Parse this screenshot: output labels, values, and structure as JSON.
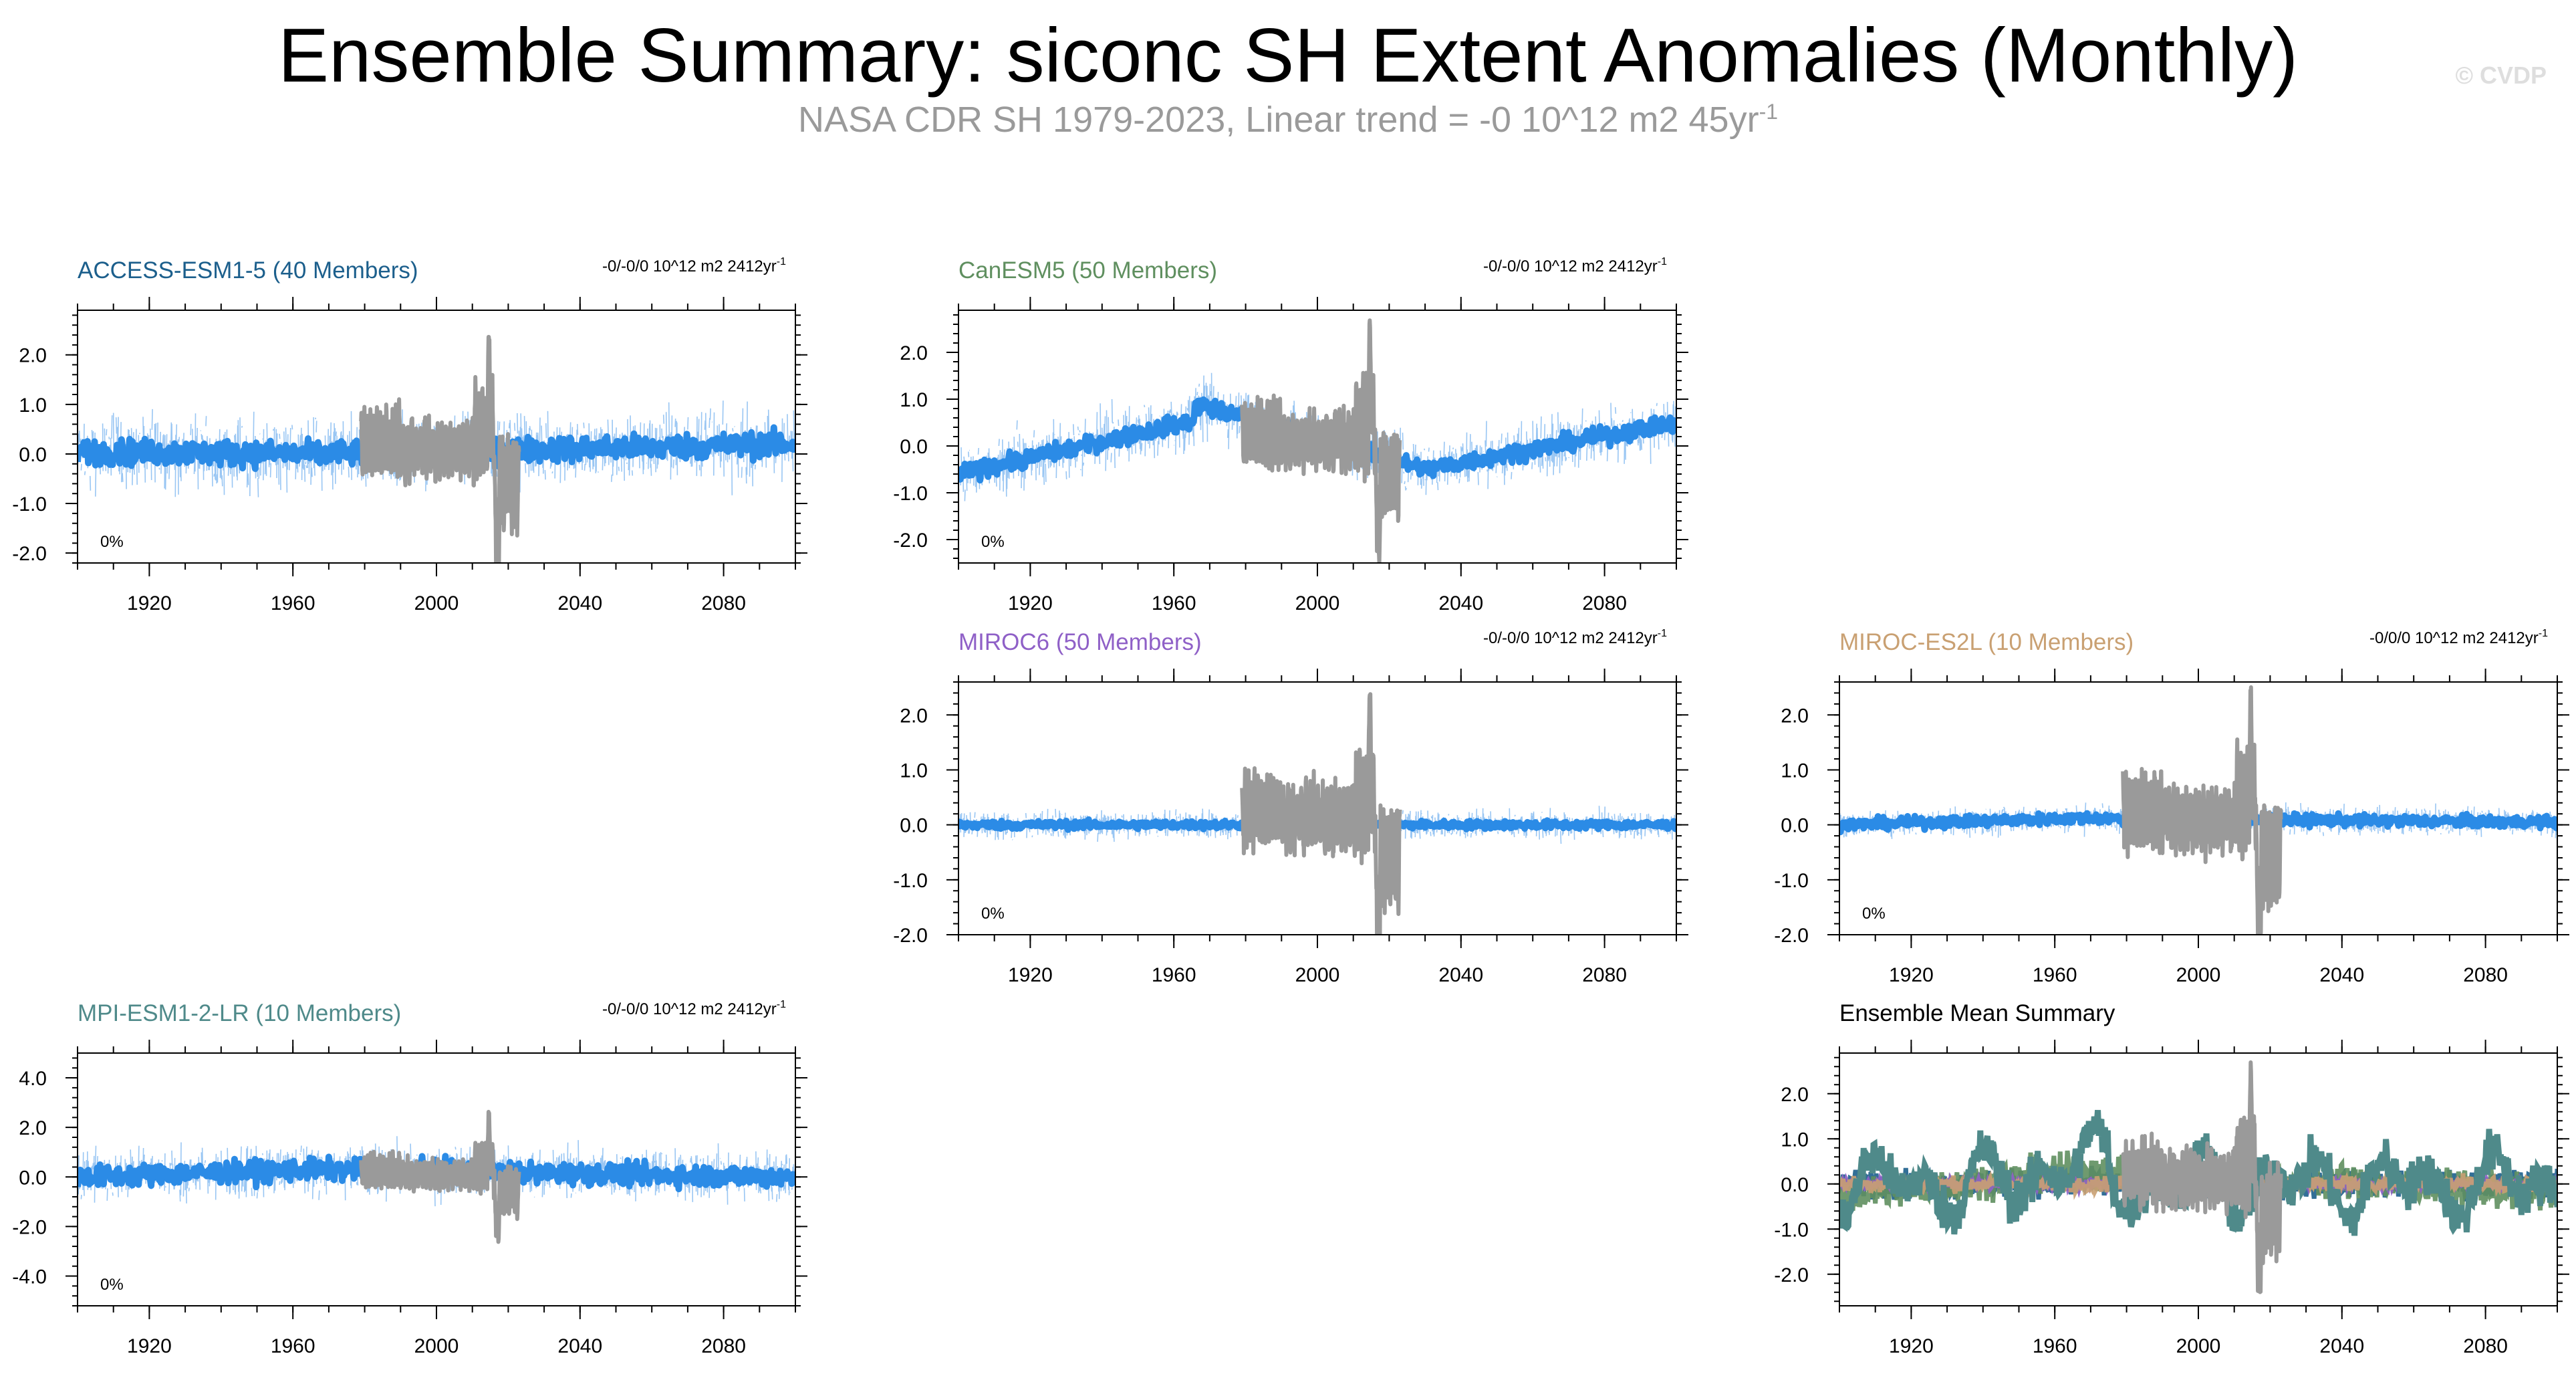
{
  "title": "Ensemble Summary: siconc SH Extent Anomalies (Monthly)",
  "subtitle": {
    "text": "NASA CDR SH 1979-2023, Linear trend = -0 10^12 m2 45yr",
    "sup": "-1"
  },
  "watermark": "© CVDP",
  "colors": {
    "members": "#7fb8f0",
    "ens_mean": "#2b8be6",
    "observations": "#9a9a9a",
    "ACCESS-ESM1-5": "#1c5f8c",
    "CanESM5": "#5f8f5f",
    "MIROC6": "#8f60c7",
    "MIROC-ES2L": "#c9a072",
    "MPI-ESM1-2-LR": "#4f8a8a",
    "summary_title": "#000000"
  },
  "chart_data": [
    {
      "type": "line",
      "key": "access",
      "title": "ACCESS-ESM1-5 (40 Members)",
      "trend": "-0/-0/0 10^12 m2 2412yr",
      "trend_sup": "-1",
      "percent": "0%",
      "xlim": [
        1900,
        2100
      ],
      "x_ticks": [
        1920,
        1960,
        2000,
        2040,
        2080
      ],
      "x_tick_labels": [
        "1920",
        "1960",
        "2000",
        "2040",
        "2080"
      ],
      "ylim": [
        -2.2,
        2.9
      ],
      "y_ticks": [
        2,
        1,
        0,
        -1,
        -2
      ],
      "y_tick_labels": [
        "2.0",
        "1.0",
        "0.0",
        "-1.0",
        "-2.0"
      ],
      "series": [
        {
          "name": "members",
          "spread": 0.9
        },
        {
          "name": "ensemble mean",
          "pattern": "flat",
          "trend": [
            0.05,
            0.0,
            0.2
          ],
          "noise": 0.18
        },
        {
          "name": "NASA CDR obs",
          "range": [
            1979,
            2023
          ]
        }
      ]
    },
    {
      "type": "line",
      "key": "canesm5",
      "title": "CanESM5 (50 Members)",
      "trend": "-0/-0/0 10^12 m2 2412yr",
      "trend_sup": "-1",
      "percent": "0%",
      "xlim": [
        1900,
        2100
      ],
      "x_ticks": [
        1920,
        1960,
        2000,
        2040,
        2080
      ],
      "x_tick_labels": [
        "1920",
        "1960",
        "2000",
        "2040",
        "2080"
      ],
      "ylim": [
        -2.5,
        2.9
      ],
      "y_ticks": [
        2,
        1,
        0,
        -1,
        -2
      ],
      "y_tick_labels": [
        "2.0",
        "1.0",
        "0.0",
        "-1.0",
        "-2.0"
      ],
      "series": [
        {
          "name": "members",
          "spread": 0.75
        },
        {
          "name": "ensemble mean",
          "pattern": "canesm",
          "noise": 0.13
        },
        {
          "name": "NASA CDR obs",
          "range": [
            1979,
            2023
          ]
        }
      ]
    },
    {
      "type": "line",
      "key": "miroc6",
      "title": "MIROC6 (50 Members)",
      "trend": "-0/-0/0 10^12 m2 2412yr",
      "trend_sup": "-1",
      "percent": "0%",
      "xlim": [
        1900,
        2100
      ],
      "x_ticks": [
        1920,
        1960,
        2000,
        2040,
        2080
      ],
      "x_tick_labels": [
        "1920",
        "1960",
        "2000",
        "2040",
        "2080"
      ],
      "ylim": [
        -2.0,
        2.6
      ],
      "y_ticks": [
        2,
        1,
        0,
        -1,
        -2
      ],
      "y_tick_labels": [
        "2.0",
        "1.0",
        "0.0",
        "-1.0",
        "-2.0"
      ],
      "series": [
        {
          "name": "members",
          "spread": 0.32
        },
        {
          "name": "ensemble mean",
          "pattern": "flat",
          "trend": [
            0.0,
            0.0,
            0.0
          ],
          "noise": 0.05
        },
        {
          "name": "NASA CDR obs",
          "range": [
            1979,
            2023
          ]
        }
      ]
    },
    {
      "type": "line",
      "key": "miroc_es2l",
      "title": "MIROC-ES2L (10 Members)",
      "trend": "-0/0/0 10^12 m2 2412yr",
      "trend_sup": "-1",
      "percent": "0%",
      "xlim": [
        1900,
        2100
      ],
      "x_ticks": [
        1920,
        1960,
        2000,
        2040,
        2080
      ],
      "x_tick_labels": [
        "1920",
        "1960",
        "2000",
        "2040",
        "2080"
      ],
      "ylim": [
        -2.0,
        2.6
      ],
      "y_ticks": [
        2,
        1,
        0,
        -1,
        -2
      ],
      "y_tick_labels": [
        "2.0",
        "1.0",
        "0.0",
        "-1.0",
        "-2.0"
      ],
      "series": [
        {
          "name": "members",
          "spread": 0.32
        },
        {
          "name": "ensemble mean",
          "pattern": "flat",
          "trend": [
            0.0,
            0.12,
            0.05
          ],
          "noise": 0.07
        },
        {
          "name": "NASA CDR obs",
          "range": [
            1979,
            2023
          ]
        }
      ]
    },
    {
      "type": "line",
      "key": "mpi",
      "title": "MPI-ESM1-2-LR (10 Members)",
      "trend": "-0/-0/0 10^12 m2 2412yr",
      "trend_sup": "-1",
      "percent": "0%",
      "xlim": [
        1900,
        2100
      ],
      "x_ticks": [
        1920,
        1960,
        2000,
        2040,
        2080
      ],
      "x_tick_labels": [
        "1920",
        "1960",
        "2000",
        "2040",
        "2080"
      ],
      "ylim": [
        -5.2,
        5.0
      ],
      "y_ticks": [
        4,
        2,
        0,
        -2,
        -4
      ],
      "y_tick_labels": [
        "4.0",
        "2.0",
        "0.0",
        "-2.0",
        "-4.0"
      ],
      "series": [
        {
          "name": "members",
          "spread": 1.3
        },
        {
          "name": "ensemble mean",
          "pattern": "flat",
          "trend": [
            0.0,
            0.3,
            0.0
          ],
          "noise": 0.3
        },
        {
          "name": "NASA CDR obs",
          "range": [
            1979,
            2023
          ]
        }
      ]
    },
    {
      "type": "line",
      "key": "summary",
      "title": "Ensemble Mean Summary",
      "trend": "",
      "trend_sup": "",
      "percent": "",
      "xlim": [
        1900,
        2100
      ],
      "x_ticks": [
        1920,
        1960,
        2000,
        2040,
        2080
      ],
      "x_tick_labels": [
        "1920",
        "1960",
        "2000",
        "2040",
        "2080"
      ],
      "ylim": [
        -2.7,
        2.9
      ],
      "y_ticks": [
        2,
        1,
        0,
        -1,
        -2
      ],
      "y_tick_labels": [
        "2.0",
        "1.0",
        "0.0",
        "-1.0",
        "-2.0"
      ],
      "series": [
        {
          "name": "ACCESS-ESM1-5 mean"
        },
        {
          "name": "CanESM5 mean"
        },
        {
          "name": "MIROC6 mean"
        },
        {
          "name": "MIROC-ES2L mean"
        },
        {
          "name": "MPI-ESM1-2-LR mean"
        },
        {
          "name": "NASA CDR obs",
          "range": [
            1979,
            2023
          ]
        }
      ]
    }
  ]
}
